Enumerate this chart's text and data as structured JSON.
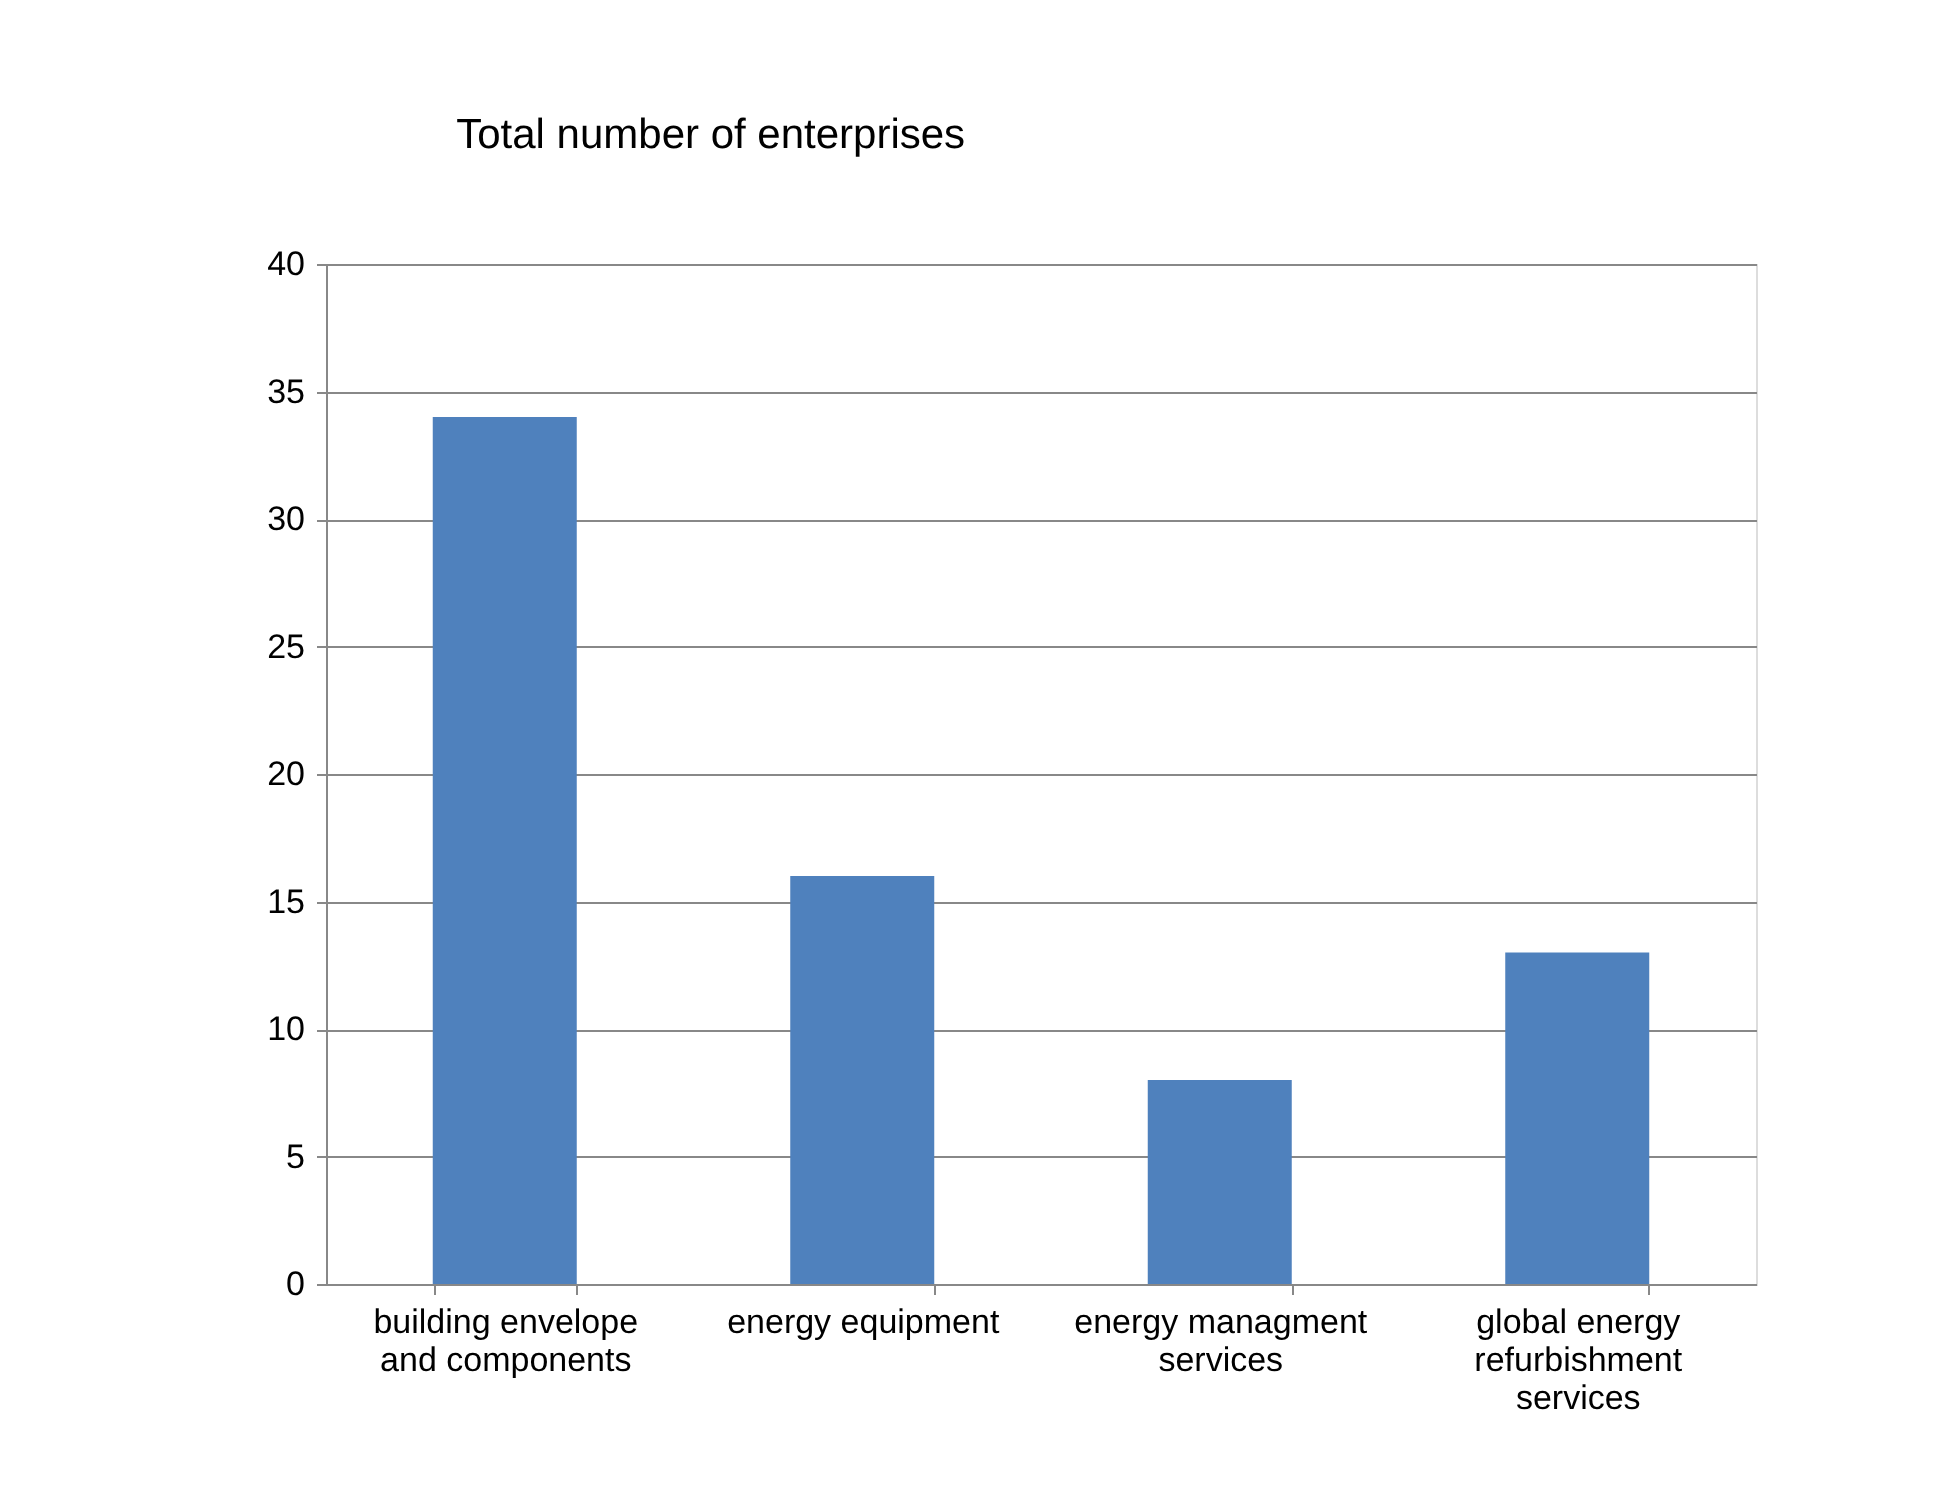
{
  "chart_data": {
    "type": "bar",
    "title": "Total number of enterprises",
    "categories": [
      "building envelope and components",
      "energy equipment",
      "energy managment services",
      "global energy refurbishment services"
    ],
    "values": [
      34,
      16,
      8,
      13
    ],
    "color": "#4f81bd",
    "ylim": [
      0,
      40
    ],
    "yticks": [
      0,
      5,
      10,
      15,
      20,
      25,
      30,
      35,
      40
    ],
    "grid": "y"
  }
}
